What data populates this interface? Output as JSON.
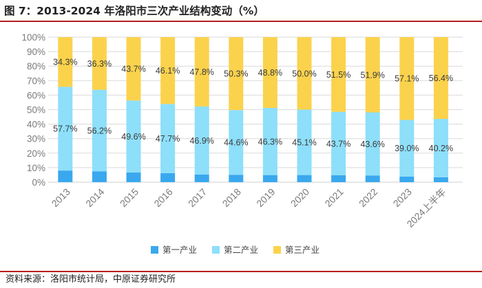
{
  "title": "图 7：2013-2024 年洛阳市三次产业结构变动（%）",
  "source": "资料来源：洛阳市统计局，中原证券研究所",
  "colors": {
    "primary": "#3aa8ee",
    "secondary": "#8ddffa",
    "tertiary": "#fbd24c",
    "rule": "#b71c1c"
  },
  "chart_data": {
    "type": "bar",
    "stacked": true,
    "title": "2013-2024 年洛阳市三次产业结构变动（%）",
    "categories": [
      "2013",
      "2014",
      "2015",
      "2016",
      "2017",
      "2018",
      "2019",
      "2020",
      "2021",
      "2022",
      "2023",
      "2024上半年"
    ],
    "series": [
      {
        "name": "第一产业",
        "values": [
          8.0,
          7.5,
          6.7,
          6.2,
          5.3,
          5.1,
          4.9,
          4.9,
          4.8,
          4.5,
          3.9,
          3.4
        ]
      },
      {
        "name": "第二产业",
        "values": [
          57.7,
          56.2,
          49.6,
          47.7,
          46.9,
          44.6,
          46.3,
          45.1,
          43.7,
          43.6,
          39.0,
          40.2
        ],
        "labels": [
          "57.7%",
          "56.2%",
          "49.6%",
          "47.7%",
          "46.9%",
          "44.6%",
          "46.3%",
          "45.1%",
          "43.7%",
          "43.6%",
          "39.0%",
          "40.2%"
        ]
      },
      {
        "name": "第三产业",
        "values": [
          34.3,
          36.3,
          43.7,
          46.1,
          47.8,
          50.3,
          48.8,
          50.0,
          51.5,
          51.9,
          57.1,
          56.4
        ],
        "labels": [
          "34.3%",
          "36.3%",
          "43.7%",
          "46.1%",
          "47.8%",
          "50.3%",
          "48.8%",
          "50.0%",
          "51.5%",
          "51.9%",
          "57.1%",
          "56.4%"
        ]
      }
    ],
    "y_ticks": [
      "0%",
      "10%",
      "20%",
      "30%",
      "40%",
      "50%",
      "60%",
      "70%",
      "80%",
      "90%",
      "100%"
    ],
    "ylim": [
      0,
      100
    ],
    "xlabel": "",
    "ylabel": "",
    "legend": {
      "position": "bottom",
      "entries": [
        "第一产业",
        "第二产业",
        "第三产业"
      ]
    }
  }
}
